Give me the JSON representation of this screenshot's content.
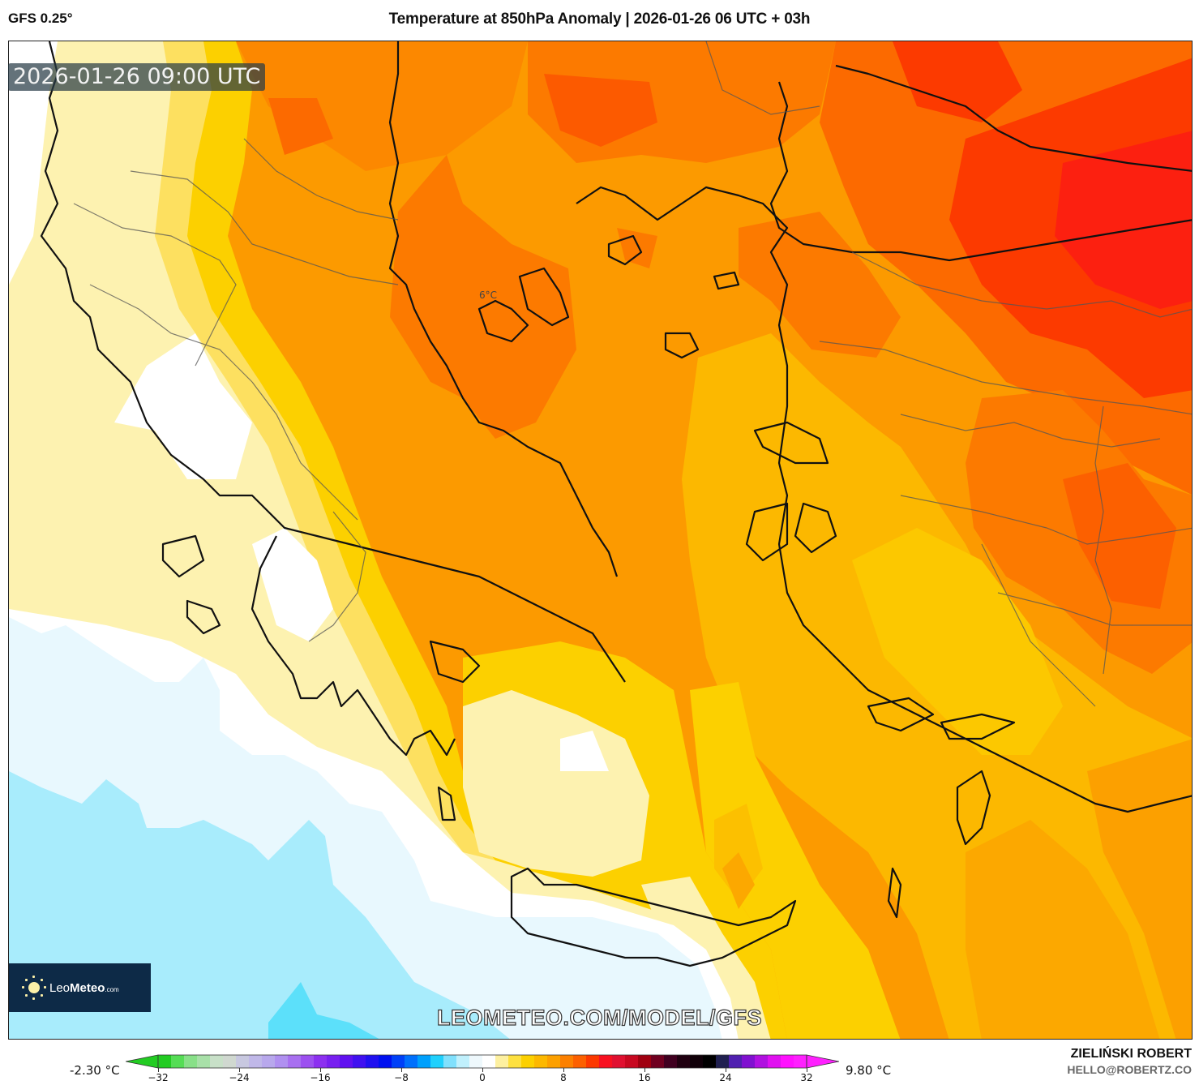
{
  "header": {
    "model": "GFS 0.25°",
    "title": "Temperature at 850hPa Anomaly | 2026-01-26 06 UTC + 03h"
  },
  "map": {
    "valid_time": "2026-01-26 09:00 UTC",
    "center_label": "6°C",
    "region": "Greece / Aegean Sea / Western Turkey",
    "band_colors": {
      "light_blue": "#a8ecfc",
      "cyan": "#5ce0fa",
      "pale_blue": "#e8f8fe",
      "white": "#ffffff",
      "pale_yellow": "#fdf2b0",
      "light_yellow": "#fde780",
      "yellow": "#fcd700",
      "gold": "#fcc000",
      "amber": "#fca800",
      "orange": "#fc9200",
      "dark_orange": "#fc7a00",
      "red_orange": "#fc5a00",
      "red": "#fc2a10"
    }
  },
  "logo": {
    "brand_light": "Leo",
    "brand_bold": "Meteo",
    "brand_suffix": ".com"
  },
  "watermark": "LEOMETEO.COM/MODEL/GFS",
  "colorbar": {
    "min_label": "-2.30 °C",
    "max_label": "9.80 °C",
    "ticks": [
      "−32",
      "−24",
      "−16",
      "−8",
      "0",
      "8",
      "16",
      "24",
      "32"
    ],
    "colors": [
      "#22cc22",
      "#55dd55",
      "#88e088",
      "#a8e0a8",
      "#c8e0c8",
      "#d0d8d0",
      "#c8c8e0",
      "#c0b8e8",
      "#b8a8ec",
      "#b090f0",
      "#a870f0",
      "#9c50f0",
      "#8c30f0",
      "#7820f0",
      "#6010f0",
      "#4010f0",
      "#2010f0",
      "#0010f0",
      "#0040f8",
      "#0070fc",
      "#00a0fc",
      "#20d0fc",
      "#80e0fc",
      "#c0f0fc",
      "#eef8fc",
      "#ffffff",
      "#fdf0a0",
      "#fde040",
      "#fcd000",
      "#fcb800",
      "#fca000",
      "#fc8000",
      "#fc6000",
      "#fc3800",
      "#f81020",
      "#e01030",
      "#c80820",
      "#a00010",
      "#700020",
      "#400020",
      "#200010",
      "#100008",
      "#000000",
      "#202050",
      "#5020b0",
      "#8010d0",
      "#b010e0",
      "#e010f0",
      "#ff10ff",
      "#ff20ff"
    ]
  },
  "author": {
    "name": "ZIELIŃSKI ROBERT",
    "email": "HELLO@ROBERTZ.CO"
  }
}
